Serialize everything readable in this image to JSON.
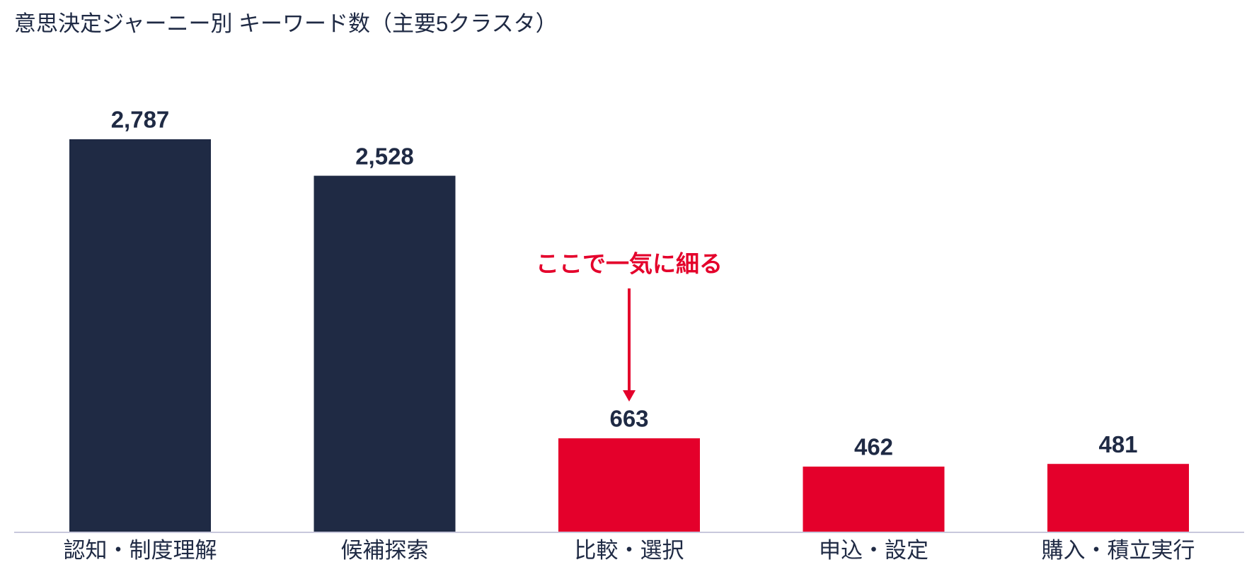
{
  "chart_data": {
    "type": "bar",
    "title": "意思決定ジャーニー別 キーワード数（主要5クラスタ）",
    "categories": [
      "認知・制度理解",
      "候補探索",
      "比較・選択",
      "申込・設定",
      "購入・積立実行"
    ],
    "values": [
      2787,
      2528,
      663,
      462,
      481
    ],
    "value_labels": [
      "2,787",
      "2,528",
      "663",
      "462",
      "481"
    ],
    "colors": [
      "#1f2a44",
      "#1f2a44",
      "#e4002b",
      "#e4002b",
      "#e4002b"
    ],
    "annotation": "ここで一気に細る",
    "annotation_color": "#e4002b"
  }
}
